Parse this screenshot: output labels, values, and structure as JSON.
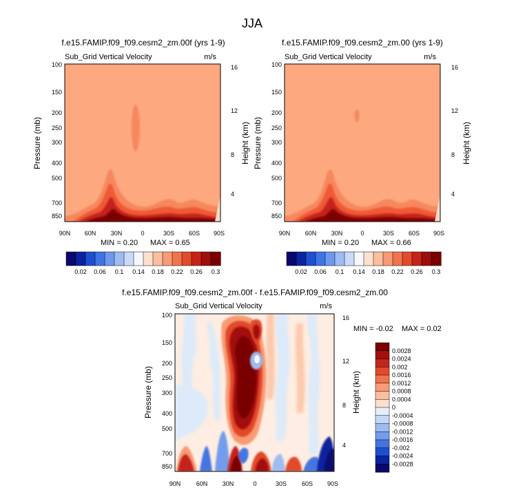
{
  "figure": {
    "title": "JJA"
  },
  "colors": {
    "background_panels": "#FDA87F",
    "positive_ramp": [
      "#FDDBC7",
      "#FCC0A0",
      "#F9A07A",
      "#F57E55",
      "#EF5A36",
      "#DD3A22",
      "#BE1E14",
      "#9E0E0B",
      "#7F0000"
    ],
    "negative_ramp": [
      "#E1EEFB",
      "#BDD5F5",
      "#99BCF0",
      "#6E9BE8",
      "#4A78DB",
      "#2A55C9",
      "#1633AD",
      "#0A1F8B",
      "#061370"
    ],
    "near_zero_light": "#FDEDE2"
  },
  "chart_data": [
    {
      "type": "contour",
      "id": "panel-left",
      "title": "f.e15.FAMIP.f09_f09.cesm2_zm.00f (yrs 1-9)",
      "variable_label": "Sub_Grid Vertical Velocity",
      "units_label": "m/s",
      "ylabel": "Pressure (mb)",
      "ylabel_right": "Height (km)",
      "x_ticks": [
        "90N",
        "60N",
        "30N",
        "0",
        "30S",
        "60S",
        "90S"
      ],
      "y_ticks": [
        "100",
        "150",
        "200",
        "250",
        "300",
        "400",
        "500",
        "700",
        "850"
      ],
      "y_ticks_right": [
        "16",
        "12",
        "8",
        "4"
      ],
      "min_label": "MIN =  0.20",
      "max_label": "MAX =  0.65",
      "min": 0.2,
      "max": 0.65
    },
    {
      "type": "contour",
      "id": "panel-right",
      "title": "f.e15.FAMIP.f09_f09.cesm2_zm.00 (yrs 1-9)",
      "variable_label": "Sub_Grid Vertical Velocity",
      "units_label": "m/s",
      "ylabel": "Pressure (mb)",
      "ylabel_right": "Height (km)",
      "x_ticks": [
        "90N",
        "60N",
        "30N",
        "0",
        "30S",
        "60S",
        "90S"
      ],
      "y_ticks": [
        "100",
        "150",
        "200",
        "250",
        "300",
        "400",
        "500",
        "700",
        "850"
      ],
      "y_ticks_right": [
        "16",
        "12",
        "8",
        "4"
      ],
      "min_label": "MIN =  0.20",
      "max_label": "MAX =  0.66",
      "min": 0.2,
      "max": 0.66
    },
    {
      "type": "contour",
      "id": "panel-diff",
      "title": "f.e15.FAMIP.f09_f09.cesm2_zm.00f - f.e15.FAMIP.f09_f09.cesm2_zm.00",
      "variable_label": "Sub_Grid Vertical Velocity",
      "units_label": "m/s",
      "ylabel": "Pressure (mb)",
      "ylabel_right": "Height (km)",
      "x_ticks": [
        "90N",
        "60N",
        "30N",
        "0",
        "30S",
        "60S",
        "90S"
      ],
      "y_ticks": [
        "100",
        "150",
        "200",
        "250",
        "300",
        "400",
        "500",
        "700",
        "850"
      ],
      "y_ticks_right": [
        "16",
        "12",
        "8",
        "4"
      ],
      "min_label": "MIN = -0.02",
      "max_label": "MAX =  0.02",
      "min": -0.02,
      "max": 0.02
    }
  ],
  "colorbar_horizontal": {
    "labels": [
      "0.02",
      "0.06",
      "0.1",
      "0.14",
      "0.18",
      "0.22",
      "0.26",
      "0.3"
    ],
    "colors": [
      "#08086E",
      "#0A239E",
      "#1D4FD0",
      "#3F74E6",
      "#6E98EC",
      "#9EBCF2",
      "#C8DAF7",
      "#F4F8FD",
      "#FDE0CF",
      "#FBBE9E",
      "#F89B74",
      "#F1734C",
      "#E24A2C",
      "#C5241A",
      "#9E0E0B",
      "#7A0000"
    ]
  },
  "colorbar_vertical": {
    "labels": [
      "0.0028",
      "0.0024",
      "0.002",
      "0.0016",
      "0.0012",
      "0.0008",
      "0.0004",
      "0",
      "-0.0004",
      "-0.0008",
      "-0.0012",
      "-0.0016",
      "-0.002",
      "-0.0024",
      "-0.0028"
    ],
    "colors": [
      "#7A0000",
      "#A3110C",
      "#C5241A",
      "#E24A2C",
      "#F1734C",
      "#F89B74",
      "#FBBE9E",
      "#FDE0CF",
      "#E4EFFB",
      "#C2D8F6",
      "#9EBCF2",
      "#739CEC",
      "#4574E0",
      "#1D4FD0",
      "#0A239E",
      "#08086E"
    ]
  }
}
